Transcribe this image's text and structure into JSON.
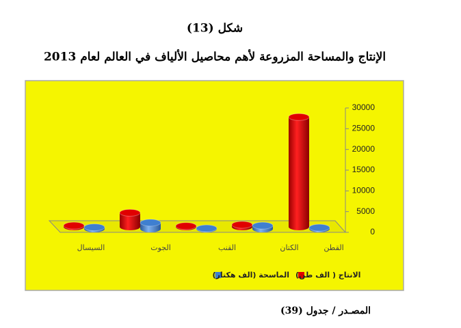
{
  "figure_label": "شكل (13)",
  "source": "المصـدر / جدول (39)",
  "chart_data": {
    "type": "bar3d",
    "title": "الإنتاج والمساحة المزروعة لأهم محاصيل الألياف في العالم لعام 2013",
    "categories": [
      "السيسال",
      "الجوت",
      "القنب",
      "الكتان",
      "القطن"
    ],
    "series": [
      {
        "name": "الانتاج ( الف طن)",
        "color": "#e00000",
        "values": [
          300,
          3400,
          200,
          500,
          26500
        ]
      },
      {
        "name": "الماسحة (الف هكتار)",
        "color": "#3f7fd0",
        "values": [
          400,
          1500,
          150,
          800,
          300
        ]
      }
    ],
    "ylim": [
      0,
      30000
    ],
    "yticks": [
      0,
      5000,
      10000,
      15000,
      20000,
      25000,
      30000
    ],
    "background": "#f5f500"
  }
}
